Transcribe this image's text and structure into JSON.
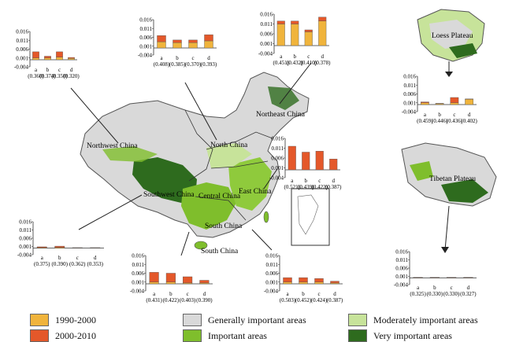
{
  "colors": {
    "c1990": "#f0b43c",
    "c2000": "#e4582a",
    "general": "#d9d9d9",
    "important": "#7fbe2c",
    "moderate": "#c7e39a",
    "very": "#2e6b1e"
  },
  "regions": {
    "northwest": "Northwest China",
    "north": "North China",
    "northeast": "Northeast China",
    "southwest": "Southwest China",
    "central": "Central China",
    "east": "East China",
    "south": "South China",
    "loess": "Loess Plateau",
    "tibetan": "Tibetan Plateau"
  },
  "legend": {
    "p1": "1990-2000",
    "p2": "2000-2010",
    "general": "Generally important areas",
    "important": "Important areas",
    "moderate": "Moderately important areas",
    "very": "Very important areas"
  },
  "chart_data": [
    {
      "type": "bar",
      "region": "Northwest China",
      "categories": [
        "a",
        "b",
        "c",
        "d"
      ],
      "subs": [
        "(0.360)",
        "(0.374)",
        "(0.350)",
        "(0.320)"
      ],
      "p1990": [
        0.001,
        0.001,
        0.0015,
        0.0008
      ],
      "p2000": [
        0.0035,
        0.001,
        0.003,
        0.0005
      ],
      "ylim": [
        -0.004,
        0.016
      ],
      "ticks": [
        "0.016",
        "0.011",
        "0.006",
        "0.001",
        "-0.004"
      ]
    },
    {
      "type": "bar",
      "region": "North China",
      "categories": [
        "a",
        "b",
        "c",
        "d"
      ],
      "subs": [
        "(0.408)",
        "(0.385)",
        "(0.370)",
        "(0.393)"
      ],
      "p1990": [
        0.0035,
        0.003,
        0.003,
        0.004
      ],
      "p2000": [
        0.0035,
        0.0015,
        0.0015,
        0.0035
      ],
      "ylim": [
        -0.004,
        0.016
      ],
      "ticks": [
        "0.016",
        "0.011",
        "0.006",
        "0.001",
        "-0.004"
      ]
    },
    {
      "type": "bar",
      "region": "Northeast China",
      "categories": [
        "a",
        "b",
        "c",
        "d"
      ],
      "subs": [
        "(0.451)",
        "(0.432)",
        "(0.410)",
        "(0.378)"
      ],
      "p1990": [
        0.011,
        0.011,
        0.007,
        0.0125
      ],
      "p2000": [
        0.0015,
        0.0015,
        0.001,
        0.002
      ],
      "ylim": [
        -0.004,
        0.016
      ],
      "ticks": [
        "0.016",
        "0.011",
        "0.006",
        "0.001",
        "-0.004"
      ]
    },
    {
      "type": "bar",
      "region": "East China",
      "categories": [
        "a",
        "b",
        "c",
        "d"
      ],
      "subs": [
        "(0.521)",
        "(0.439)",
        "(0.422)",
        "(0.387)"
      ],
      "p1990": [
        0,
        0,
        0,
        0
      ],
      "p2000": [
        0.012,
        0.009,
        0.0095,
        0.0055
      ],
      "ylim": [
        -0.004,
        0.016
      ],
      "ticks": [
        "0.016",
        "0.011",
        "0.006",
        "0.001",
        "-0.004"
      ]
    },
    {
      "type": "bar",
      "region": "Southwest China",
      "categories": [
        "a",
        "b",
        "c",
        "d"
      ],
      "subs": [
        "(0.375)",
        "(0.390)",
        "(0.362)",
        "(0.353)"
      ],
      "p1990": [
        0.0003,
        0.0004,
        0.0001,
        0.0001
      ],
      "p2000": [
        0.0005,
        0.0008,
        0.0002,
        0.0002
      ],
      "ylim": [
        -0.004,
        0.016
      ],
      "ticks": [
        "0.016",
        "0.011",
        "0.006",
        "0.001",
        "-0.004"
      ]
    },
    {
      "type": "bar",
      "region": "Central China",
      "categories": [
        "a",
        "b",
        "c",
        "d"
      ],
      "subs": [
        "(0.431)",
        "(0.422)",
        "(0.403)",
        "(0.390)"
      ],
      "p1990": [
        0.001,
        0.001,
        0.0005,
        0.0005
      ],
      "p2000": [
        0.0055,
        0.005,
        0.0035,
        0.0015
      ],
      "ylim": [
        -0.004,
        0.016
      ],
      "ticks": [
        "0.016",
        "0.011",
        "0.006",
        "0.001",
        "-0.004"
      ]
    },
    {
      "type": "bar",
      "region": "South China",
      "categories": [
        "a",
        "b",
        "c",
        "d"
      ],
      "subs": [
        "(0.503)",
        "(0.452)",
        "(0.424)",
        "(0.387)"
      ],
      "p1990": [
        0.001,
        0.001,
        0.001,
        0.0005
      ],
      "p2000": [
        0.0025,
        0.0025,
        0.002,
        0.001
      ],
      "ylim": [
        -0.004,
        0.016
      ],
      "ticks": [
        "0.016",
        "0.011",
        "0.006",
        "0.001",
        "-0.004"
      ]
    },
    {
      "type": "bar",
      "region": "Loess Plateau",
      "categories": [
        "a",
        "b",
        "c",
        "d"
      ],
      "subs": [
        "(0.459)",
        "(0.446)",
        "(0.436)",
        "(0.402)"
      ],
      "p1990": [
        0.001,
        0.0005,
        0.001,
        0.003
      ],
      "p2000": [
        0.0005,
        0.0002,
        0.003,
        0.0002
      ],
      "ylim": [
        -0.004,
        0.016
      ],
      "ticks": [
        "0.016",
        "0.011",
        "0.006",
        "0.001",
        "-0.004"
      ]
    },
    {
      "type": "bar",
      "region": "Tibetan Plateau",
      "categories": [
        "a",
        "b",
        "c",
        "d"
      ],
      "subs": [
        "(0.325)",
        "(0.330)",
        "(0.330)",
        "(0.327)"
      ],
      "p1990": [
        0.0002,
        0.0002,
        0.0002,
        0.0002
      ],
      "p2000": [
        0.0002,
        0.0002,
        0.0002,
        0.0002
      ],
      "ylim": [
        -0.004,
        0.016
      ],
      "ticks": [
        "0.016",
        "0.011",
        "0.006",
        "0.001",
        "-0.004"
      ]
    }
  ]
}
